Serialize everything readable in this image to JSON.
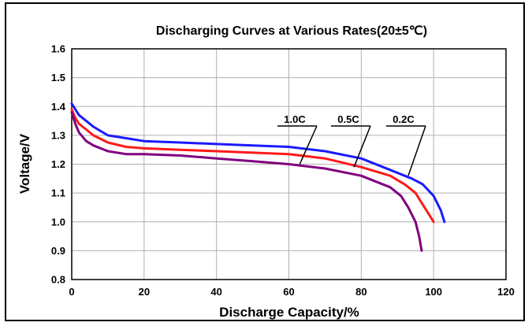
{
  "chart_data": {
    "type": "line",
    "title": "Discharging Curves at Various Rates(20±5℃)",
    "xlabel": "Discharge Capacity/%",
    "ylabel": "Voltage/V",
    "xlim": [
      0,
      120
    ],
    "ylim": [
      0.8,
      1.6
    ],
    "x_ticks": [
      "0",
      "20",
      "40",
      "60",
      "80",
      "100",
      "120"
    ],
    "y_ticks": [
      "0.8",
      "0.9",
      "1.0",
      "1.1",
      "1.2",
      "1.3",
      "1.4",
      "1.5",
      "1.6"
    ],
    "grid": true,
    "colors": {
      "0.2C": "#1a1aff",
      "0.5C": "#ff1a1a",
      "1.0C": "#800080"
    },
    "series": [
      {
        "name": "0.2C",
        "color": "#1a1aff",
        "points": [
          [
            0,
            1.41
          ],
          [
            1,
            1.39
          ],
          [
            2,
            1.37
          ],
          [
            4,
            1.35
          ],
          [
            6,
            1.33
          ],
          [
            10,
            1.3
          ],
          [
            15,
            1.29
          ],
          [
            20,
            1.28
          ],
          [
            30,
            1.275
          ],
          [
            40,
            1.27
          ],
          [
            50,
            1.265
          ],
          [
            60,
            1.26
          ],
          [
            70,
            1.245
          ],
          [
            80,
            1.22
          ],
          [
            88,
            1.18
          ],
          [
            94,
            1.15
          ],
          [
            97,
            1.13
          ],
          [
            100,
            1.09
          ],
          [
            102,
            1.04
          ],
          [
            103,
            1.0
          ]
        ]
      },
      {
        "name": "0.5C",
        "color": "#ff1a1a",
        "points": [
          [
            0,
            1.39
          ],
          [
            1,
            1.36
          ],
          [
            2,
            1.34
          ],
          [
            4,
            1.32
          ],
          [
            6,
            1.3
          ],
          [
            10,
            1.275
          ],
          [
            15,
            1.26
          ],
          [
            20,
            1.255
          ],
          [
            30,
            1.25
          ],
          [
            40,
            1.245
          ],
          [
            50,
            1.24
          ],
          [
            60,
            1.235
          ],
          [
            70,
            1.22
          ],
          [
            80,
            1.19
          ],
          [
            88,
            1.16
          ],
          [
            92,
            1.13
          ],
          [
            95,
            1.1
          ],
          [
            97,
            1.06
          ],
          [
            99,
            1.02
          ],
          [
            100,
            1.0
          ]
        ]
      },
      {
        "name": "1.0C",
        "color": "#800080",
        "points": [
          [
            0,
            1.38
          ],
          [
            1,
            1.34
          ],
          [
            2,
            1.31
          ],
          [
            4,
            1.28
          ],
          [
            6,
            1.265
          ],
          [
            10,
            1.245
          ],
          [
            15,
            1.235
          ],
          [
            20,
            1.235
          ],
          [
            30,
            1.23
          ],
          [
            40,
            1.22
          ],
          [
            50,
            1.21
          ],
          [
            60,
            1.2
          ],
          [
            70,
            1.185
          ],
          [
            80,
            1.16
          ],
          [
            88,
            1.12
          ],
          [
            91,
            1.09
          ],
          [
            93,
            1.05
          ],
          [
            95,
            1.0
          ],
          [
            96,
            0.95
          ],
          [
            96.7,
            0.9
          ]
        ]
      }
    ],
    "annotations": [
      {
        "text": "1.0C",
        "series": "1.0C",
        "point": [
          63,
          1.2
        ]
      },
      {
        "text": "0.5C",
        "series": "0.5C",
        "point": [
          78,
          1.19
        ]
      },
      {
        "text": "0.2C",
        "series": "0.2C",
        "point": [
          93,
          1.16
        ]
      }
    ]
  }
}
